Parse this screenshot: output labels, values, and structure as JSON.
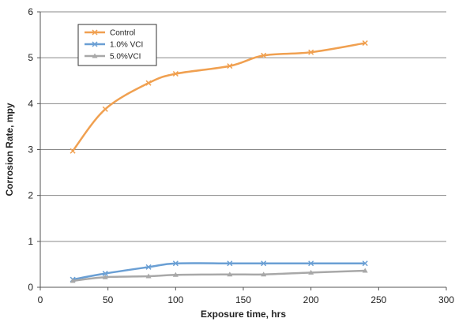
{
  "chart_data": {
    "type": "line",
    "title": "",
    "xlabel": "Exposure time, hrs",
    "ylabel": "Corrosion Rate, mpy",
    "xlim": [
      0,
      300
    ],
    "ylim": [
      0,
      6
    ],
    "xticks": [
      0,
      50,
      100,
      150,
      200,
      250,
      300
    ],
    "yticks": [
      0,
      1,
      2,
      3,
      4,
      5,
      6
    ],
    "grid": "horizontal",
    "legend_position": "top-left",
    "series": [
      {
        "name": "Control",
        "color": "#F0A050",
        "marker": "x",
        "x": [
          24,
          48,
          80,
          100,
          140,
          165,
          200,
          240
        ],
        "y": [
          2.97,
          3.88,
          4.45,
          4.65,
          4.82,
          5.05,
          5.12,
          5.32
        ]
      },
      {
        "name": "1.0% VCI",
        "color": "#6A9FD4",
        "marker": "x",
        "x": [
          24,
          48,
          80,
          100,
          140,
          165,
          200,
          240
        ],
        "y": [
          0.17,
          0.3,
          0.44,
          0.52,
          0.52,
          0.52,
          0.52,
          0.52
        ]
      },
      {
        "name": "5.0%VCI",
        "color": "#A8A8A8",
        "marker": "triangle",
        "x": [
          24,
          48,
          80,
          100,
          140,
          165,
          200,
          240
        ],
        "y": [
          0.14,
          0.22,
          0.24,
          0.27,
          0.28,
          0.28,
          0.32,
          0.36
        ]
      }
    ]
  }
}
